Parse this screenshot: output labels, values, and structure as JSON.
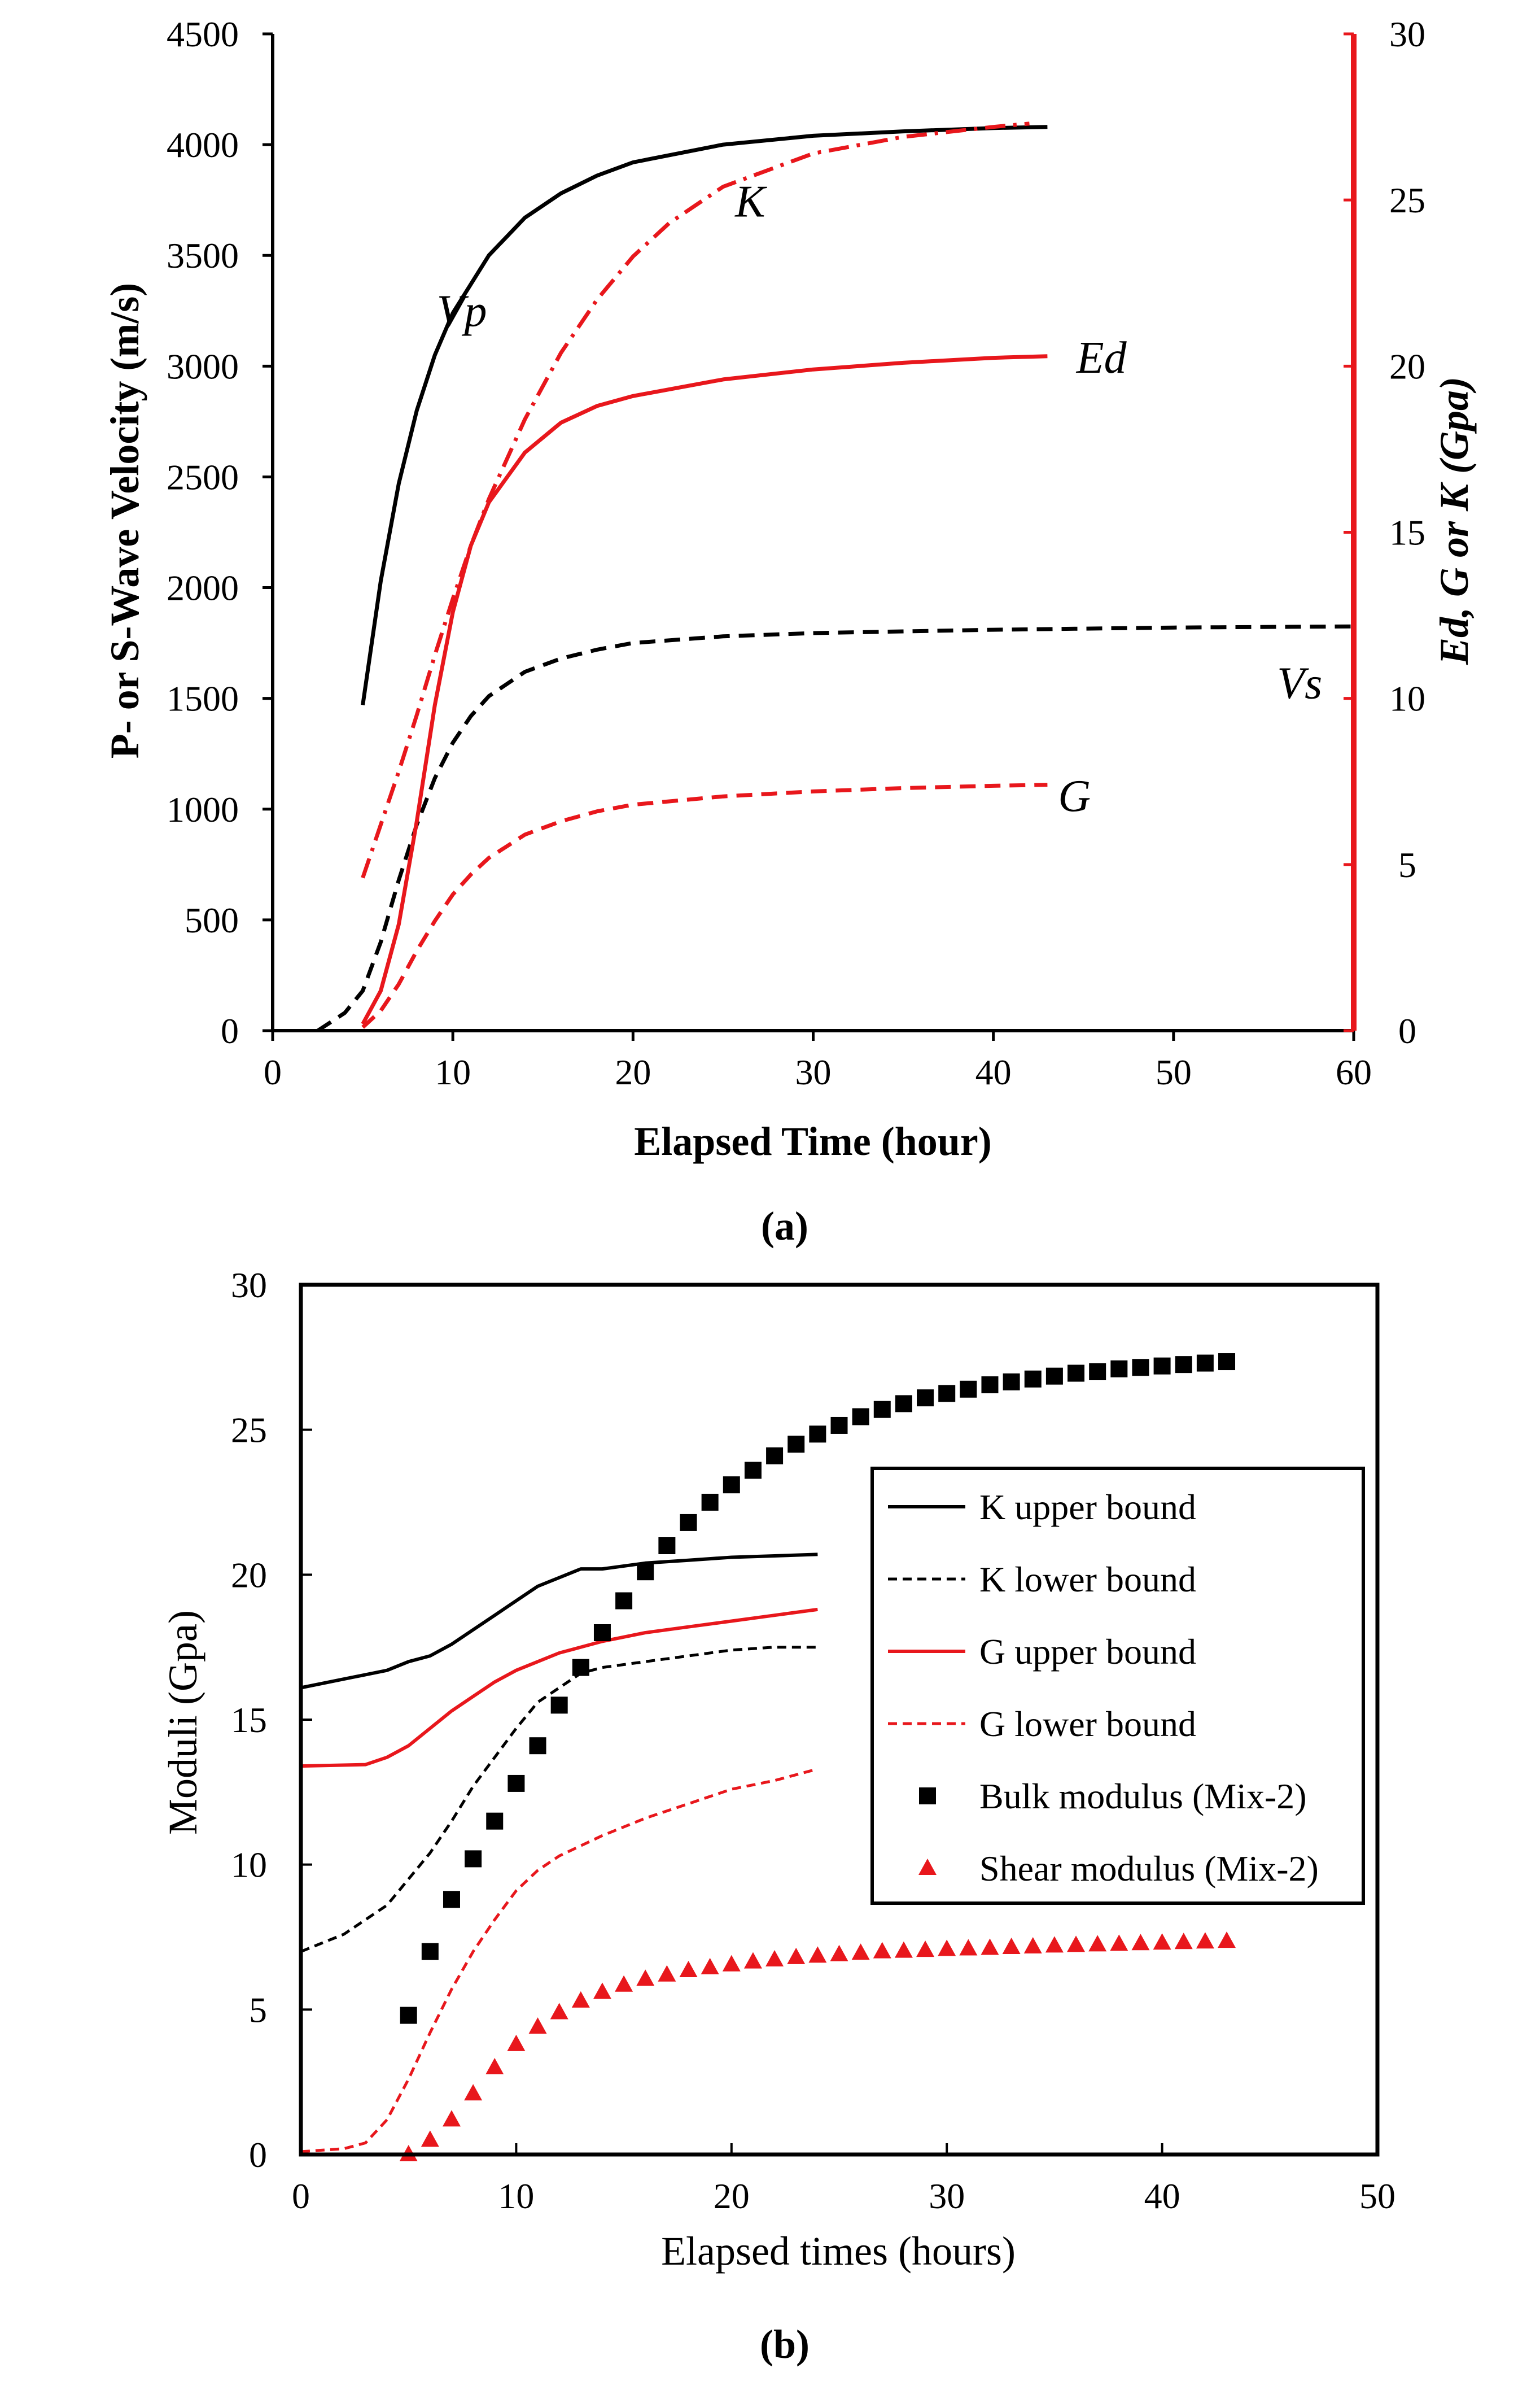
{
  "chart_data": [
    {
      "type": "line",
      "panel": "(a)",
      "xlabel": "Elapsed Time (hour)",
      "ylabel": "P- or S-Wave Velocity (m/s)",
      "y2label": "Ed, G or K (Gpa)",
      "xlim": [
        0,
        60
      ],
      "ylim": [
        0,
        4500
      ],
      "y2lim": [
        0,
        30
      ],
      "x_ticks": [
        "0",
        "10",
        "20",
        "30",
        "40",
        "50",
        "60"
      ],
      "y_ticks": [
        "0",
        "500",
        "1000",
        "1500",
        "2000",
        "2500",
        "3000",
        "3500",
        "4000",
        "4500"
      ],
      "y2_ticks": [
        "0",
        "5",
        "10",
        "15",
        "20",
        "25",
        "30"
      ],
      "series": [
        {
          "name": "Vp",
          "label": "Vp",
          "axis": "left",
          "color": "#000000",
          "style": "solid",
          "x": [
            5,
            6,
            7,
            8,
            9,
            10,
            12,
            14,
            16,
            18,
            20,
            25,
            30,
            35,
            40,
            43
          ],
          "y": [
            1470,
            2030,
            2470,
            2800,
            3050,
            3240,
            3500,
            3670,
            3780,
            3860,
            3920,
            4000,
            4040,
            4060,
            4075,
            4080
          ]
        },
        {
          "name": "Vs",
          "label": "Vs",
          "axis": "left",
          "color": "#000000",
          "style": "dashed",
          "x": [
            2.5,
            4,
            5,
            6,
            7,
            8,
            9,
            10,
            11,
            12,
            14,
            16,
            18,
            20,
            25,
            30,
            40,
            50,
            60
          ],
          "y": [
            0,
            80,
            180,
            400,
            680,
            930,
            1140,
            1300,
            1420,
            1510,
            1620,
            1680,
            1720,
            1750,
            1780,
            1795,
            1810,
            1820,
            1825
          ]
        },
        {
          "name": "K",
          "label": "K",
          "axis": "right",
          "color": "#e8171c",
          "style": "dashdot",
          "x": [
            5,
            6,
            7,
            8,
            9,
            10,
            11,
            12,
            14,
            16,
            18,
            20,
            22,
            25,
            30,
            35,
            40,
            42
          ],
          "y": [
            4.6,
            6.2,
            7.8,
            9.5,
            11.3,
            13.0,
            14.6,
            16.0,
            18.4,
            20.4,
            22.0,
            23.3,
            24.3,
            25.4,
            26.4,
            26.9,
            27.2,
            27.3
          ]
        },
        {
          "name": "Ed",
          "label": "Ed",
          "axis": "right",
          "color": "#e8171c",
          "style": "solid",
          "x": [
            5,
            6,
            7,
            8,
            9,
            10,
            11,
            12,
            14,
            16,
            18,
            20,
            25,
            30,
            35,
            40,
            43
          ],
          "y": [
            0.2,
            1.2,
            3.2,
            6.3,
            9.8,
            12.6,
            14.6,
            15.9,
            17.4,
            18.3,
            18.8,
            19.1,
            19.6,
            19.9,
            20.1,
            20.25,
            20.3
          ]
        },
        {
          "name": "G",
          "label": "G",
          "axis": "right",
          "color": "#e8171c",
          "style": "dashed",
          "x": [
            5,
            6,
            7,
            8,
            9,
            10,
            11,
            12,
            14,
            16,
            18,
            20,
            25,
            30,
            35,
            40,
            43
          ],
          "y": [
            0.1,
            0.6,
            1.4,
            2.4,
            3.3,
            4.1,
            4.7,
            5.2,
            5.9,
            6.3,
            6.6,
            6.8,
            7.05,
            7.2,
            7.3,
            7.37,
            7.4
          ]
        }
      ]
    },
    {
      "type": "line+scatter",
      "panel": "(b)",
      "xlabel": "Elapsed times (hours)",
      "ylabel": "Moduli (Gpa)",
      "xlim": [
        0,
        50
      ],
      "ylim": [
        0,
        30
      ],
      "x_ticks": [
        "0",
        "10",
        "20",
        "30",
        "40",
        "50"
      ],
      "y_ticks": [
        "0",
        "5",
        "10",
        "15",
        "20",
        "25",
        "30"
      ],
      "legend_position": "right",
      "series": [
        {
          "name": "K upper bound",
          "kind": "line",
          "color": "#000000",
          "style": "solid",
          "x": [
            0,
            2,
            4,
            5,
            6,
            7,
            8,
            9,
            10,
            11,
            12,
            13,
            14,
            16,
            18,
            20,
            22,
            24
          ],
          "y": [
            16.1,
            16.4,
            16.7,
            17.0,
            17.2,
            17.6,
            18.1,
            18.6,
            19.1,
            19.6,
            19.9,
            20.2,
            20.2,
            20.4,
            20.5,
            20.6,
            20.65,
            20.7
          ]
        },
        {
          "name": "K lower bound",
          "kind": "line",
          "color": "#000000",
          "style": "dashed",
          "x": [
            0,
            2,
            4,
            5,
            6,
            7,
            8,
            9,
            10,
            11,
            12,
            13,
            14,
            16,
            18,
            20,
            22,
            24
          ],
          "y": [
            7.0,
            7.6,
            8.6,
            9.5,
            10.4,
            11.5,
            12.7,
            13.7,
            14.7,
            15.6,
            16.1,
            16.6,
            16.8,
            17.0,
            17.2,
            17.4,
            17.5,
            17.5
          ]
        },
        {
          "name": "G upper bound",
          "kind": "line",
          "color": "#e8171c",
          "style": "solid",
          "x": [
            0,
            3,
            4,
            5,
            6,
            7,
            8,
            9,
            10,
            11,
            12,
            14,
            16,
            18,
            20,
            22,
            24
          ],
          "y": [
            13.4,
            13.45,
            13.7,
            14.1,
            14.7,
            15.3,
            15.8,
            16.3,
            16.7,
            17.0,
            17.3,
            17.7,
            18.0,
            18.2,
            18.4,
            18.6,
            18.8
          ]
        },
        {
          "name": "G lower bound",
          "kind": "line",
          "color": "#e8171c",
          "style": "dashed",
          "x": [
            0,
            2,
            3,
            4,
            5,
            6,
            7,
            8,
            9,
            10,
            11,
            12,
            14,
            16,
            18,
            20,
            22,
            24
          ],
          "y": [
            0.1,
            0.2,
            0.4,
            1.2,
            2.6,
            4.2,
            5.7,
            7.0,
            8.1,
            9.1,
            9.8,
            10.3,
            11.0,
            11.6,
            12.1,
            12.6,
            12.9,
            13.3
          ]
        },
        {
          "name": "Bulk modulus (Mix-2)",
          "kind": "scatter",
          "marker": "square",
          "color": "#000000",
          "x": [
            5,
            6,
            7,
            8,
            9,
            10,
            11,
            12,
            13,
            14,
            15,
            16,
            17,
            18,
            19,
            20,
            21,
            22,
            23,
            24,
            25,
            26,
            27,
            28,
            29,
            30,
            31,
            32,
            33,
            34,
            35,
            36,
            37,
            38,
            39,
            40,
            41,
            42,
            43
          ],
          "y": [
            4.8,
            7.0,
            8.8,
            10.2,
            11.5,
            12.8,
            14.1,
            15.5,
            16.8,
            18.0,
            19.1,
            20.1,
            21.0,
            21.8,
            22.5,
            23.1,
            23.6,
            24.1,
            24.5,
            24.85,
            25.15,
            25.45,
            25.7,
            25.9,
            26.1,
            26.25,
            26.4,
            26.55,
            26.65,
            26.75,
            26.85,
            26.95,
            27.0,
            27.1,
            27.15,
            27.2,
            27.25,
            27.3,
            27.35
          ]
        },
        {
          "name": "Shear modulus (Mix-2)",
          "kind": "scatter",
          "marker": "triangle",
          "color": "#e8171c",
          "x": [
            5,
            6,
            7,
            8,
            9,
            10,
            11,
            12,
            13,
            14,
            15,
            16,
            17,
            18,
            19,
            20,
            21,
            22,
            23,
            24,
            25,
            26,
            27,
            28,
            29,
            30,
            31,
            32,
            33,
            34,
            35,
            36,
            37,
            38,
            39,
            40,
            41,
            42,
            43
          ],
          "y": [
            0.0,
            0.5,
            1.2,
            2.1,
            3.0,
            3.8,
            4.4,
            4.9,
            5.3,
            5.6,
            5.85,
            6.05,
            6.2,
            6.35,
            6.45,
            6.55,
            6.65,
            6.72,
            6.8,
            6.85,
            6.9,
            6.95,
            7.0,
            7.02,
            7.05,
            7.08,
            7.1,
            7.12,
            7.15,
            7.17,
            7.2,
            7.22,
            7.24,
            7.26,
            7.28,
            7.3,
            7.32,
            7.34,
            7.36
          ]
        }
      ]
    }
  ]
}
